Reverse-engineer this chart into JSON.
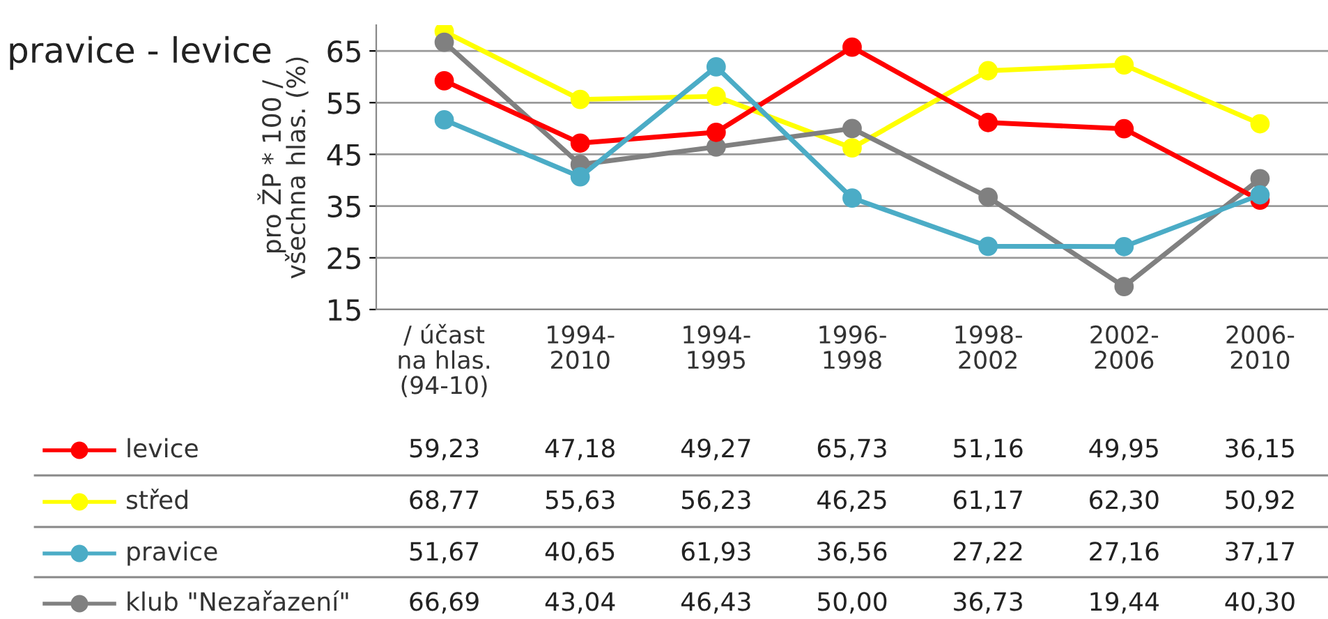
{
  "chart_data": {
    "type": "line",
    "title": "pravice - levice",
    "ylabel": "pro ŽP * 100 /\nvšechna hlas. (%)",
    "categories": [
      "/ účast\nna hlas.\n(94-10)",
      "1994-\n2010",
      "1994-\n1995",
      "1996-\n1998",
      "1998-\n2002",
      "2002-\n2006",
      "2006-\n2010"
    ],
    "series": [
      {
        "name": "levice",
        "color": "#ff0000",
        "values": [
          59.23,
          47.18,
          49.27,
          65.73,
          51.16,
          49.95,
          36.15
        ],
        "value_labels": [
          "59,23",
          "47,18",
          "49,27",
          "65,73",
          "51,16",
          "49,95",
          "36,15"
        ]
      },
      {
        "name": "střed",
        "color": "#ffff00",
        "values": [
          68.77,
          55.63,
          56.23,
          46.25,
          61.17,
          62.3,
          50.92
        ],
        "value_labels": [
          "68,77",
          "55,63",
          "56,23",
          "46,25",
          "61,17",
          "62,30",
          "50,92"
        ]
      },
      {
        "name": "pravice",
        "color": "#4bacc6",
        "values": [
          51.67,
          40.65,
          61.93,
          36.56,
          27.22,
          27.16,
          37.17
        ],
        "value_labels": [
          "51,67",
          "40,65",
          "61,93",
          "36,56",
          "27,22",
          "27,16",
          "37,17"
        ]
      },
      {
        "name": "klub \"Nezařazení\"",
        "color": "#808080",
        "values": [
          66.69,
          43.04,
          46.43,
          50.0,
          36.73,
          19.44,
          40.3
        ],
        "value_labels": [
          "66,69",
          "43,04",
          "46,43",
          "50,00",
          "36,73",
          "19,44",
          "40,30"
        ]
      }
    ],
    "ylim": [
      15,
      70
    ],
    "yticks": [
      15,
      25,
      35,
      45,
      55,
      65
    ],
    "grid": "y",
    "marker": "circle",
    "line_style": "solid",
    "legend": "bottom"
  }
}
